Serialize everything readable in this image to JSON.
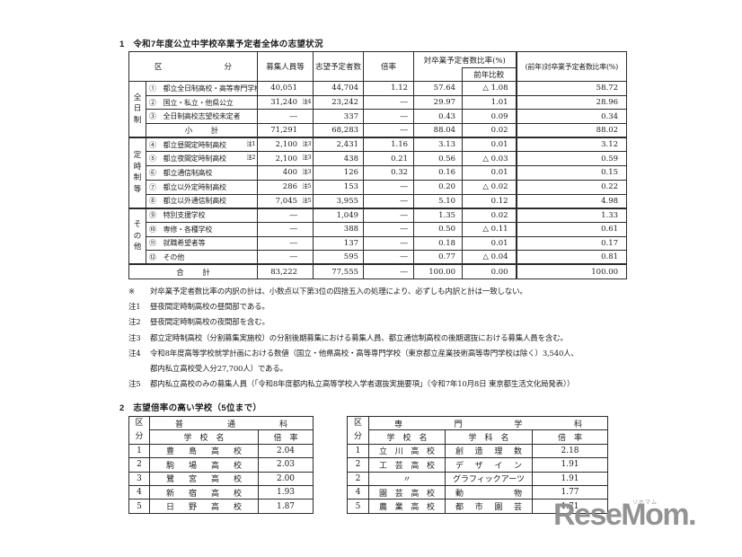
{
  "page": {
    "section1_title": "1　令和7年度公立中学校卒業予定者全体の志望状況",
    "section2_title": "2　志望倍率の高い学校（5位まで）"
  },
  "main_table": {
    "header": {
      "kubun": "区　　分",
      "boshu": "募集人員等",
      "shibo": "志望予定者数",
      "bairitsu": "倍率",
      "hiritsu": "対卒業予定者数比率(%)",
      "zennen_hikaku": "前年比較",
      "zennen_hiritsu": "(前年)対卒業予定者数比率(%)"
    },
    "groups": [
      {
        "label": "全日制",
        "span": 4
      },
      {
        "label": "定時制等",
        "span": 5
      },
      {
        "label": "その他",
        "span": 4
      }
    ],
    "rows": [
      {
        "label": "①　都立全日制高校・高等専門学校",
        "label_note": "",
        "recruit": "40,051",
        "recruit_note": "",
        "applicants": "44,704",
        "ratio": "1.12",
        "pct": "57.64",
        "yoy": "△ 1.08",
        "prev_pct": "58.72",
        "subtotal": false
      },
      {
        "label": "②　国立・私立・他県公立",
        "label_note": "",
        "recruit": "31,240",
        "recruit_note": "注4",
        "applicants": "23,242",
        "ratio": "―",
        "pct": "29.97",
        "yoy": "1.01",
        "prev_pct": "28.96",
        "subtotal": false
      },
      {
        "label": "③　全日制高校志望校未定者",
        "label_note": "",
        "recruit": "―",
        "recruit_note": "",
        "applicants": "337",
        "ratio": "―",
        "pct": "0.43",
        "yoy": "0.09",
        "prev_pct": "0.34",
        "subtotal": false
      },
      {
        "label": "小　計",
        "label_note": "",
        "recruit": "71,291",
        "recruit_note": "",
        "applicants": "68,283",
        "ratio": "―",
        "pct": "88.04",
        "yoy": "0.02",
        "prev_pct": "88.02",
        "subtotal": true
      },
      {
        "label": "④　都立昼間定時制高校",
        "label_note": "注1",
        "recruit": "2,100",
        "recruit_note": "注3",
        "applicants": "2,431",
        "ratio": "1.16",
        "pct": "3.13",
        "yoy": "0.01",
        "prev_pct": "3.12",
        "subtotal": false
      },
      {
        "label": "⑤　都立夜間定時制高校",
        "label_note": "注2",
        "recruit": "2,100",
        "recruit_note": "注3",
        "applicants": "438",
        "ratio": "0.21",
        "pct": "0.56",
        "yoy": "△ 0.03",
        "prev_pct": "0.59",
        "subtotal": false
      },
      {
        "label": "⑥　都立通信制高校",
        "label_note": "",
        "recruit": "400",
        "recruit_note": "注3",
        "applicants": "126",
        "ratio": "0.32",
        "pct": "0.16",
        "yoy": "0.01",
        "prev_pct": "0.15",
        "subtotal": false
      },
      {
        "label": "⑦　都立以外定時制高校",
        "label_note": "",
        "recruit": "286",
        "recruit_note": "注5",
        "applicants": "153",
        "ratio": "―",
        "pct": "0.20",
        "yoy": "△ 0.02",
        "prev_pct": "0.22",
        "subtotal": false
      },
      {
        "label": "⑧　都立以外通信制高校",
        "label_note": "",
        "recruit": "7,045",
        "recruit_note": "注5",
        "applicants": "3,955",
        "ratio": "―",
        "pct": "5.10",
        "yoy": "0.12",
        "prev_pct": "4.98",
        "subtotal": false
      },
      {
        "label": "⑨　特別支援学校",
        "label_note": "",
        "recruit": "―",
        "recruit_note": "",
        "applicants": "1,049",
        "ratio": "―",
        "pct": "1.35",
        "yoy": "0.02",
        "prev_pct": "1.33",
        "subtotal": false
      },
      {
        "label": "⑩　専修・各種学校",
        "label_note": "",
        "recruit": "―",
        "recruit_note": "",
        "applicants": "388",
        "ratio": "―",
        "pct": "0.50",
        "yoy": "△ 0.11",
        "prev_pct": "0.61",
        "subtotal": false
      },
      {
        "label": "⑪　就職希望者等",
        "label_note": "",
        "recruit": "―",
        "recruit_note": "",
        "applicants": "137",
        "ratio": "―",
        "pct": "0.18",
        "yoy": "0.01",
        "prev_pct": "0.17",
        "subtotal": false
      },
      {
        "label": "⑫　その他",
        "label_note": "",
        "recruit": "―",
        "recruit_note": "",
        "applicants": "595",
        "ratio": "―",
        "pct": "0.77",
        "yoy": "△ 0.04",
        "prev_pct": "0.81",
        "subtotal": false
      }
    ],
    "total": {
      "label": "合　計",
      "recruit": "83,222",
      "applicants": "77,555",
      "ratio": "―",
      "pct": "100.00",
      "yoy": "0.00",
      "prev_pct": "100.00"
    }
  },
  "notes": [
    {
      "tag": "※",
      "text": "対卒業予定者数比率の内訳の計は、小数点以下第3位の四捨五入の処理により、必ずしも内訳と計は一致しない。",
      "cont": false
    },
    {
      "tag": "注1",
      "text": "昼夜間定時制高校の昼間部である。",
      "cont": false
    },
    {
      "tag": "注2",
      "text": "昼夜間定時制高校の夜間部を含む。",
      "cont": false
    },
    {
      "tag": "注3",
      "text": "都立定時制高校（分割募集実施校）の分割後期募集における募集人員、都立通信制高校の後期選抜における募集人員を含む。",
      "cont": false
    },
    {
      "tag": "注4",
      "text": "令和8年度高等学校就学計画における数値（国立・他県高校・高等専門学校（東京都立産業技術高等専門学校は除く）3,540人、",
      "cont": false
    },
    {
      "tag": "",
      "text": "都内私立高校受入分27,700人）である。",
      "cont": true
    },
    {
      "tag": "注5",
      "text": "都内私立高校のみの募集人員（「令和8年度都内私立高等学校入学者選抜実施要項」（令和7年10月8日 東京都生活文化局発表））",
      "cont": false
    }
  ],
  "ranking": {
    "general": {
      "kubun": "区\n分",
      "group_header": "普　通　科",
      "col_school": "学　校　名",
      "col_ratio": "倍　率",
      "rows": [
        {
          "rank": "1",
          "school": "豊島高校",
          "ratio": "2.04"
        },
        {
          "rank": "2",
          "school": "駒場高校",
          "ratio": "2.03"
        },
        {
          "rank": "3",
          "school": "鷺宮高校",
          "ratio": "2.00"
        },
        {
          "rank": "4",
          "school": "新宿高校",
          "ratio": "1.93"
        },
        {
          "rank": "5",
          "school": "日野高校",
          "ratio": "1.87"
        }
      ]
    },
    "special": {
      "kubun": "区\n分",
      "group_header": "専　門　学　科",
      "col_school": "学　校　名",
      "col_dept": "学　科　名",
      "col_ratio": "倍　率",
      "rows": [
        {
          "rank": "1",
          "school": "立川高校",
          "dept": "創造理数",
          "ratio": "2.18"
        },
        {
          "rank": "2",
          "school": "工芸高校",
          "dept": "デザイン",
          "ratio": "1.91"
        },
        {
          "rank": "2",
          "school": "〃",
          "dept": "グラフィックアーツ",
          "ratio": "1.91"
        },
        {
          "rank": "4",
          "school": "園芸高校",
          "dept": "動物",
          "ratio": "1.77"
        },
        {
          "rank": "5",
          "school": "農業高校",
          "dept": "都市園芸",
          "ratio": "1.71"
        }
      ]
    }
  },
  "logo": {
    "text": "ReseMom.",
    "kana": "リセマム"
  }
}
